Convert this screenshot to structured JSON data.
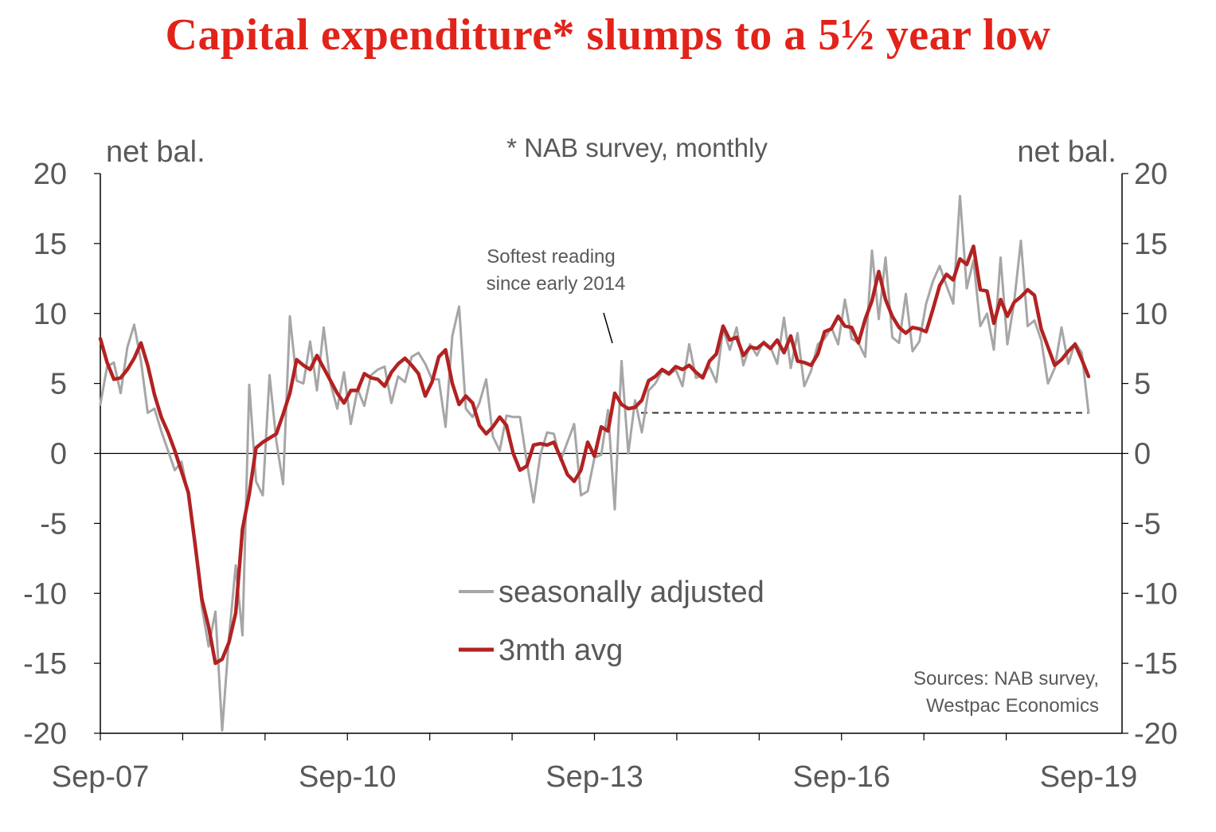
{
  "colors": {
    "title": "#e2231a",
    "sa_line": "#a6a6a6",
    "avg_line": "#b22222",
    "axis": "#000000",
    "text": "#595959"
  },
  "chart_data": {
    "type": "line",
    "title": "Capital expenditure* slumps to a 5½ year low",
    "subtitle": "* NAB survey, monthly",
    "ylabel_left": "net bal.",
    "ylabel_right": "net bal.",
    "ylim": [
      -20,
      20
    ],
    "yticks": [
      "20",
      "15",
      "10",
      "5",
      "0",
      "-5",
      "-10",
      "-15",
      "-20"
    ],
    "xlim": [
      "Sep-07",
      "Sep-19"
    ],
    "xtick_labels": [
      "Sep-07",
      "Sep-10",
      "Sep-13",
      "Sep-16",
      "Sep-19"
    ],
    "annotation": "Softest reading since early 2014",
    "annotation_lines": [
      "Softest reading",
      "since early 2014"
    ],
    "reference_level": 2.9,
    "source": "Sources: NAB survey, Westpac Economics",
    "source_lines": [
      "Sources: NAB survey,",
      "Westpac Economics"
    ],
    "legend": [
      "seasonally adjusted",
      "3mth avg"
    ],
    "series": [
      {
        "name": "seasonally adjusted",
        "values": [
          3.5,
          6.2,
          6.5,
          4.3,
          7.6,
          9.2,
          6.6,
          2.9,
          3.2,
          1.6,
          0.2,
          -1.2,
          -0.6,
          -3.0,
          -6.5,
          -11.0,
          -13.8,
          -11.3,
          -19.8,
          -13.2,
          -8.0,
          -13.0,
          4.9,
          -2.0,
          -3.0,
          5.6,
          0.9,
          -2.2,
          9.8,
          5.2,
          5.0,
          8.0,
          4.5,
          9.0,
          5.0,
          3.2,
          5.8,
          2.1,
          4.6,
          3.4,
          5.6,
          6.0,
          6.2,
          3.6,
          5.5,
          5.1,
          6.9,
          7.2,
          6.4,
          5.3,
          5.3,
          1.9,
          8.4,
          10.5,
          3.2,
          2.6,
          3.6,
          5.3,
          1.2,
          0.2,
          2.7,
          2.6,
          2.6,
          -0.6,
          -3.5,
          -0.1,
          1.5,
          1.4,
          -0.5,
          0.8,
          2.1,
          -3.0,
          -2.7,
          -0.3,
          -0.1,
          3.1,
          -4.0,
          6.6,
          0.0,
          3.8,
          1.5,
          4.5,
          5.0,
          5.9,
          5.6,
          6.0,
          4.8,
          7.8,
          5.4,
          5.6,
          6.2,
          5.1,
          8.9,
          7.4,
          9.0,
          6.3,
          7.8,
          7.0,
          8.0,
          7.6,
          6.4,
          9.7,
          6.1,
          8.6,
          4.8,
          5.9,
          7.8,
          8.2,
          9.0,
          7.8,
          11.0,
          8.2,
          7.9,
          6.9,
          14.5,
          9.6,
          14.0,
          8.3,
          7.9,
          11.4,
          7.3,
          8.0,
          10.7,
          12.3,
          13.4,
          12.0,
          10.7,
          18.4,
          11.8,
          13.8,
          9.1,
          10.0,
          7.4,
          14.0,
          7.8,
          10.8,
          15.2,
          9.1,
          9.5,
          8.1,
          5.0,
          6.1,
          9.0,
          6.4,
          7.9,
          7.2,
          2.9
        ]
      },
      {
        "name": "3mth avg",
        "values": [
          8.2,
          6.5,
          5.3,
          5.4,
          6.0,
          6.8,
          7.9,
          6.3,
          4.2,
          2.6,
          1.5,
          0.2,
          -1.3,
          -2.8,
          -6.5,
          -10.4,
          -12.4,
          -15.0,
          -14.7,
          -13.5,
          -11.4,
          -5.4,
          -2.9,
          0.4,
          0.8,
          1.1,
          1.4,
          2.8,
          4.3,
          6.7,
          6.3,
          6.0,
          7.0,
          6.1,
          5.2,
          4.3,
          3.6,
          4.5,
          4.5,
          5.7,
          5.4,
          5.3,
          4.8,
          5.8,
          6.4,
          6.8,
          6.3,
          5.7,
          4.1,
          5.1,
          6.9,
          7.4,
          5.0,
          3.5,
          4.1,
          3.6,
          2.0,
          1.4,
          1.9,
          2.6,
          2.0,
          0.0,
          -1.2,
          -0.9,
          0.6,
          0.7,
          0.6,
          0.8,
          -0.3,
          -1.5,
          -2.0,
          -1.2,
          0.8,
          -0.2,
          1.9,
          1.6,
          4.3,
          3.5,
          3.2,
          3.3,
          3.8,
          5.2,
          5.5,
          6.0,
          5.7,
          6.2,
          6.0,
          6.3,
          5.8,
          5.4,
          6.6,
          7.1,
          9.1,
          8.1,
          8.3,
          7.0,
          7.6,
          7.5,
          7.9,
          7.5,
          8.1,
          7.2,
          8.4,
          6.6,
          6.5,
          6.3,
          7.1,
          8.7,
          8.9,
          9.8,
          9.1,
          9.0,
          7.9,
          9.6,
          10.9,
          13.0,
          11.0,
          9.8,
          9.0,
          8.6,
          9.0,
          8.9,
          8.7,
          10.3,
          12.0,
          12.8,
          12.4,
          13.9,
          13.5,
          14.8,
          11.7,
          11.6,
          9.3,
          11.0,
          9.8,
          10.8,
          11.2,
          11.7,
          11.3,
          8.9,
          7.6,
          6.3,
          6.7,
          7.3,
          7.8,
          6.7,
          5.5
        ]
      }
    ]
  }
}
